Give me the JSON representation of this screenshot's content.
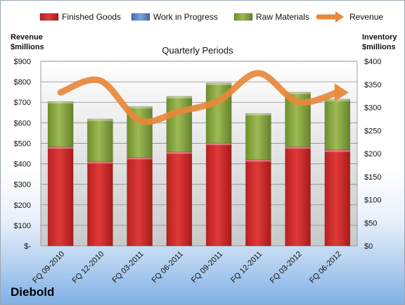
{
  "chart_data": {
    "type": "bar",
    "stacked": true,
    "title": "",
    "subtitle": "Quarterly Periods",
    "brand": "Diebold",
    "left_axis_title": [
      "Revenue",
      "$millions"
    ],
    "right_axis_title": [
      "Inventory",
      "$millions"
    ],
    "categories": [
      "FQ 09-2010",
      "FQ 12-2010",
      "FQ 03-2011",
      "FQ 06-2011",
      "FQ 09-2011",
      "FQ 12-2011",
      "FQ 03-2012",
      "FQ 06-2012"
    ],
    "series": [
      {
        "name": "Finished Goods",
        "kind": "bar",
        "axis": "right",
        "color": "#d42a2a",
        "values": [
          215,
          183,
          192,
          204,
          223,
          187,
          215,
          208
        ]
      },
      {
        "name": "Work in Progress",
        "kind": "bar",
        "axis": "right",
        "color": "#5b89c8",
        "values": [
          0,
          0,
          0,
          0,
          0,
          0,
          0,
          0
        ]
      },
      {
        "name": "Raw Materials",
        "kind": "bar",
        "axis": "right",
        "color": "#8aaa3c",
        "values": [
          98,
          92,
          110,
          120,
          130,
          100,
          118,
          110
        ]
      },
      {
        "name": "Revenue",
        "kind": "line",
        "axis": "left",
        "color": "#e8883a",
        "values": [
          748,
          806,
          612,
          655,
          708,
          842,
          702,
          748
        ]
      }
    ],
    "left_axis": {
      "min": 0,
      "max": 900,
      "step": 100,
      "labels": [
        "$-",
        "$100",
        "$200",
        "$300",
        "$400",
        "$500",
        "$600",
        "$700",
        "$800",
        "$900"
      ]
    },
    "right_axis": {
      "min": 0,
      "max": 400,
      "step": 50,
      "labels": [
        "$0",
        "$50",
        "$100",
        "$150",
        "$200",
        "$250",
        "$300",
        "$350",
        "$400"
      ]
    },
    "grid": true,
    "legend_position": "top"
  }
}
